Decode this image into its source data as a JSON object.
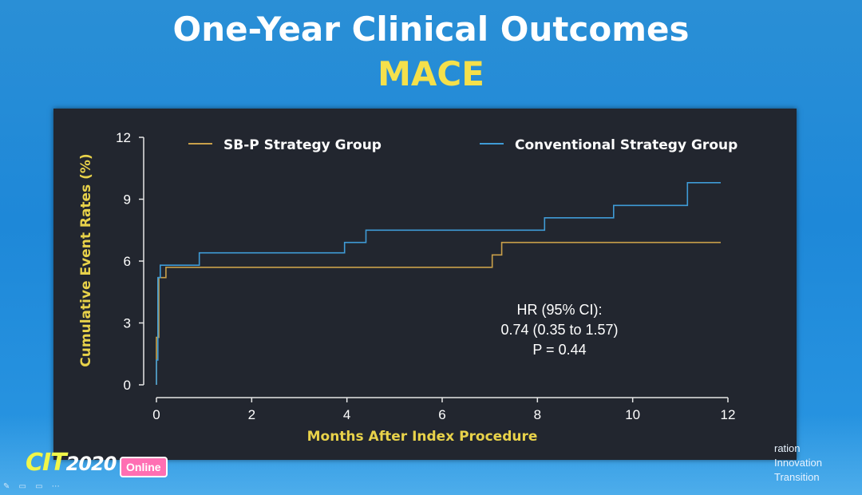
{
  "slide": {
    "title": "One-Year Clinical Outcomes",
    "subtitle": "MACE"
  },
  "footer": {
    "logo_text": "CIT",
    "logo_year": "2020",
    "badge": "Online",
    "tagline": [
      "ration",
      "Innovation",
      "Transition"
    ]
  },
  "colors": {
    "sbp": "#c9a04a",
    "conventional": "#3f9bd6",
    "axis_label": "#e8d24a",
    "panel": "#22262f"
  },
  "chart_data": {
    "type": "line",
    "step": true,
    "xlabel": "Months After Index Procedure",
    "ylabel": "Cumulative Event Rates (%)",
    "xlim": [
      0,
      12
    ],
    "ylim": [
      0,
      12
    ],
    "xticks": [
      0,
      2,
      4,
      6,
      8,
      10,
      12
    ],
    "yticks": [
      0,
      3,
      6,
      9,
      12
    ],
    "grid": false,
    "legend_position": "top",
    "series": [
      {
        "name": "SB-P Strategy Group",
        "color": "#c9a04a",
        "points": [
          [
            0,
            0
          ],
          [
            0,
            2.3
          ],
          [
            0.05,
            2.3
          ],
          [
            0.05,
            5.2
          ],
          [
            0.2,
            5.2
          ],
          [
            0.2,
            5.7
          ],
          [
            7.05,
            5.7
          ],
          [
            7.05,
            6.3
          ],
          [
            7.25,
            6.3
          ],
          [
            7.25,
            6.9
          ],
          [
            11.85,
            6.9
          ]
        ]
      },
      {
        "name": "Conventional Strategy Group",
        "color": "#3f9bd6",
        "points": [
          [
            0,
            0
          ],
          [
            0,
            1.2
          ],
          [
            0.03,
            1.2
          ],
          [
            0.03,
            5.2
          ],
          [
            0.08,
            5.2
          ],
          [
            0.08,
            5.8
          ],
          [
            0.9,
            5.8
          ],
          [
            0.9,
            6.4
          ],
          [
            3.95,
            6.4
          ],
          [
            3.95,
            6.9
          ],
          [
            4.4,
            6.9
          ],
          [
            4.4,
            7.5
          ],
          [
            8.15,
            7.5
          ],
          [
            8.15,
            8.1
          ],
          [
            9.6,
            8.1
          ],
          [
            9.6,
            8.7
          ],
          [
            11.15,
            8.7
          ],
          [
            11.15,
            9.8
          ],
          [
            11.85,
            9.8
          ]
        ]
      }
    ],
    "annotation": [
      "HR (95% CI):",
      "0.74 (0.35 to 1.57)",
      "P = 0.44"
    ]
  }
}
